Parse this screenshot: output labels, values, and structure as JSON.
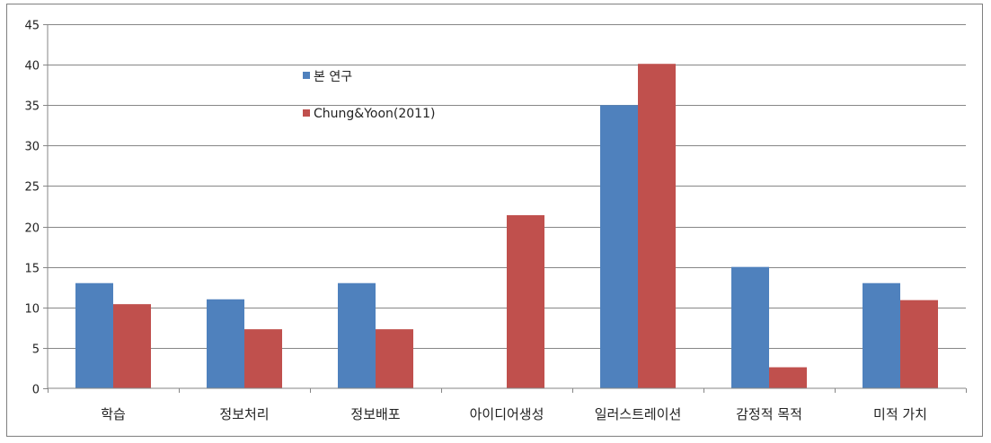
{
  "chart_data": {
    "type": "bar",
    "categories": [
      "학습",
      "정보처리",
      "정보배포",
      "아이디어생성",
      "일러스트레이션",
      "감정적 목적",
      "미적 가치"
    ],
    "series": [
      {
        "name": "본 연구",
        "color": "#4f81bd",
        "values": [
          13,
          11,
          13,
          0,
          35,
          15,
          13
        ]
      },
      {
        "name": "Chung&Yoon(2011)",
        "color": "#c0504d",
        "values": [
          10.4,
          7.3,
          7.3,
          21.4,
          40.1,
          2.6,
          10.9
        ]
      }
    ],
    "title": "",
    "xlabel": "",
    "ylabel": "",
    "ylim": [
      0,
      45
    ],
    "yticks": [
      0,
      5,
      10,
      15,
      20,
      25,
      30,
      35,
      40,
      45
    ],
    "grid": true,
    "legend_position": "top-left-inside"
  }
}
